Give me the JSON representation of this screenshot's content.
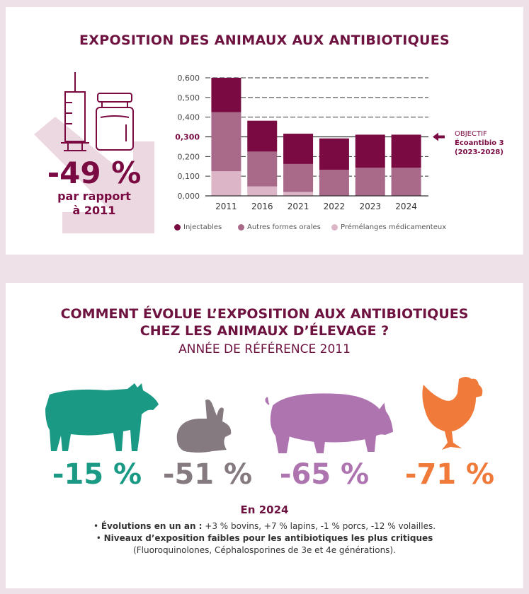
{
  "section1": {
    "title": "EXPOSITION DES ANIMAUX AUX ANTIBIOTIQUES",
    "headline": "-49 %",
    "headline_sub_1": "par rapport",
    "headline_sub_2": "à 2011",
    "objective": {
      "line1": "OBJECTIF",
      "line2": "Écoantibio 3",
      "line3": "(2023-2028)",
      "value": 0.3
    }
  },
  "chart_data": {
    "type": "bar",
    "stacked": true,
    "categories": [
      "2011",
      "2016",
      "2021",
      "2022",
      "2023",
      "2024"
    ],
    "series": [
      {
        "name": "Prémélanges médicamenteux",
        "color": "#dcb6c6",
        "values": [
          0.125,
          0.048,
          0.02,
          0.0,
          0.0,
          0.0
        ]
      },
      {
        "name": "Autres formes orales",
        "color": "#a86a88",
        "values": [
          0.3,
          0.177,
          0.142,
          0.133,
          0.143,
          0.143
        ]
      },
      {
        "name": "Injectables",
        "color": "#7a0a42",
        "values": [
          0.175,
          0.157,
          0.154,
          0.159,
          0.168,
          0.168
        ]
      }
    ],
    "legend_order": [
      "Injectables",
      "Autres formes orales",
      "Prémélanges médicamenteux"
    ],
    "yticks": [
      "0,000",
      "0,100",
      "0,200",
      "0,300",
      "0,400",
      "0,500",
      "0,600"
    ],
    "ylim": [
      0,
      0.6
    ],
    "grid": "dashed horizontal",
    "legend_position": "bottom"
  },
  "section2": {
    "title_line1": "COMMENT ÉVOLUE L’EXPOSITION AUX ANTIBIOTIQUES",
    "title_line2": "CHEZ LES ANIMAUX D’ÉLEVAGE ?",
    "subtitle": "ANNÉE DE RÉFÉRENCE 2011",
    "animals": [
      {
        "icon": "cow-icon",
        "value": "-15 %",
        "color": "#1a9a85"
      },
      {
        "icon": "rabbit-icon",
        "value": "-51 %",
        "color": "#857a80"
      },
      {
        "icon": "pig-icon",
        "value": "-65 %",
        "color": "#ae74b0"
      },
      {
        "icon": "chicken-icon",
        "value": "-71 %",
        "color": "#f07a3a"
      }
    ],
    "year_heading": "En 2024",
    "bullet1_bold": "Évolutions en un an :",
    "bullet1_text": " +3 % bovins, +7 % lapins, -1 % porcs, -12 % volailles.",
    "bullet2_bold": "Niveaux d’exposition faibles pour les antibiotiques les plus critiques",
    "bullet2_text": "(Fluoroquinolones, Céphalosporines de 3e et 4e générations)."
  }
}
